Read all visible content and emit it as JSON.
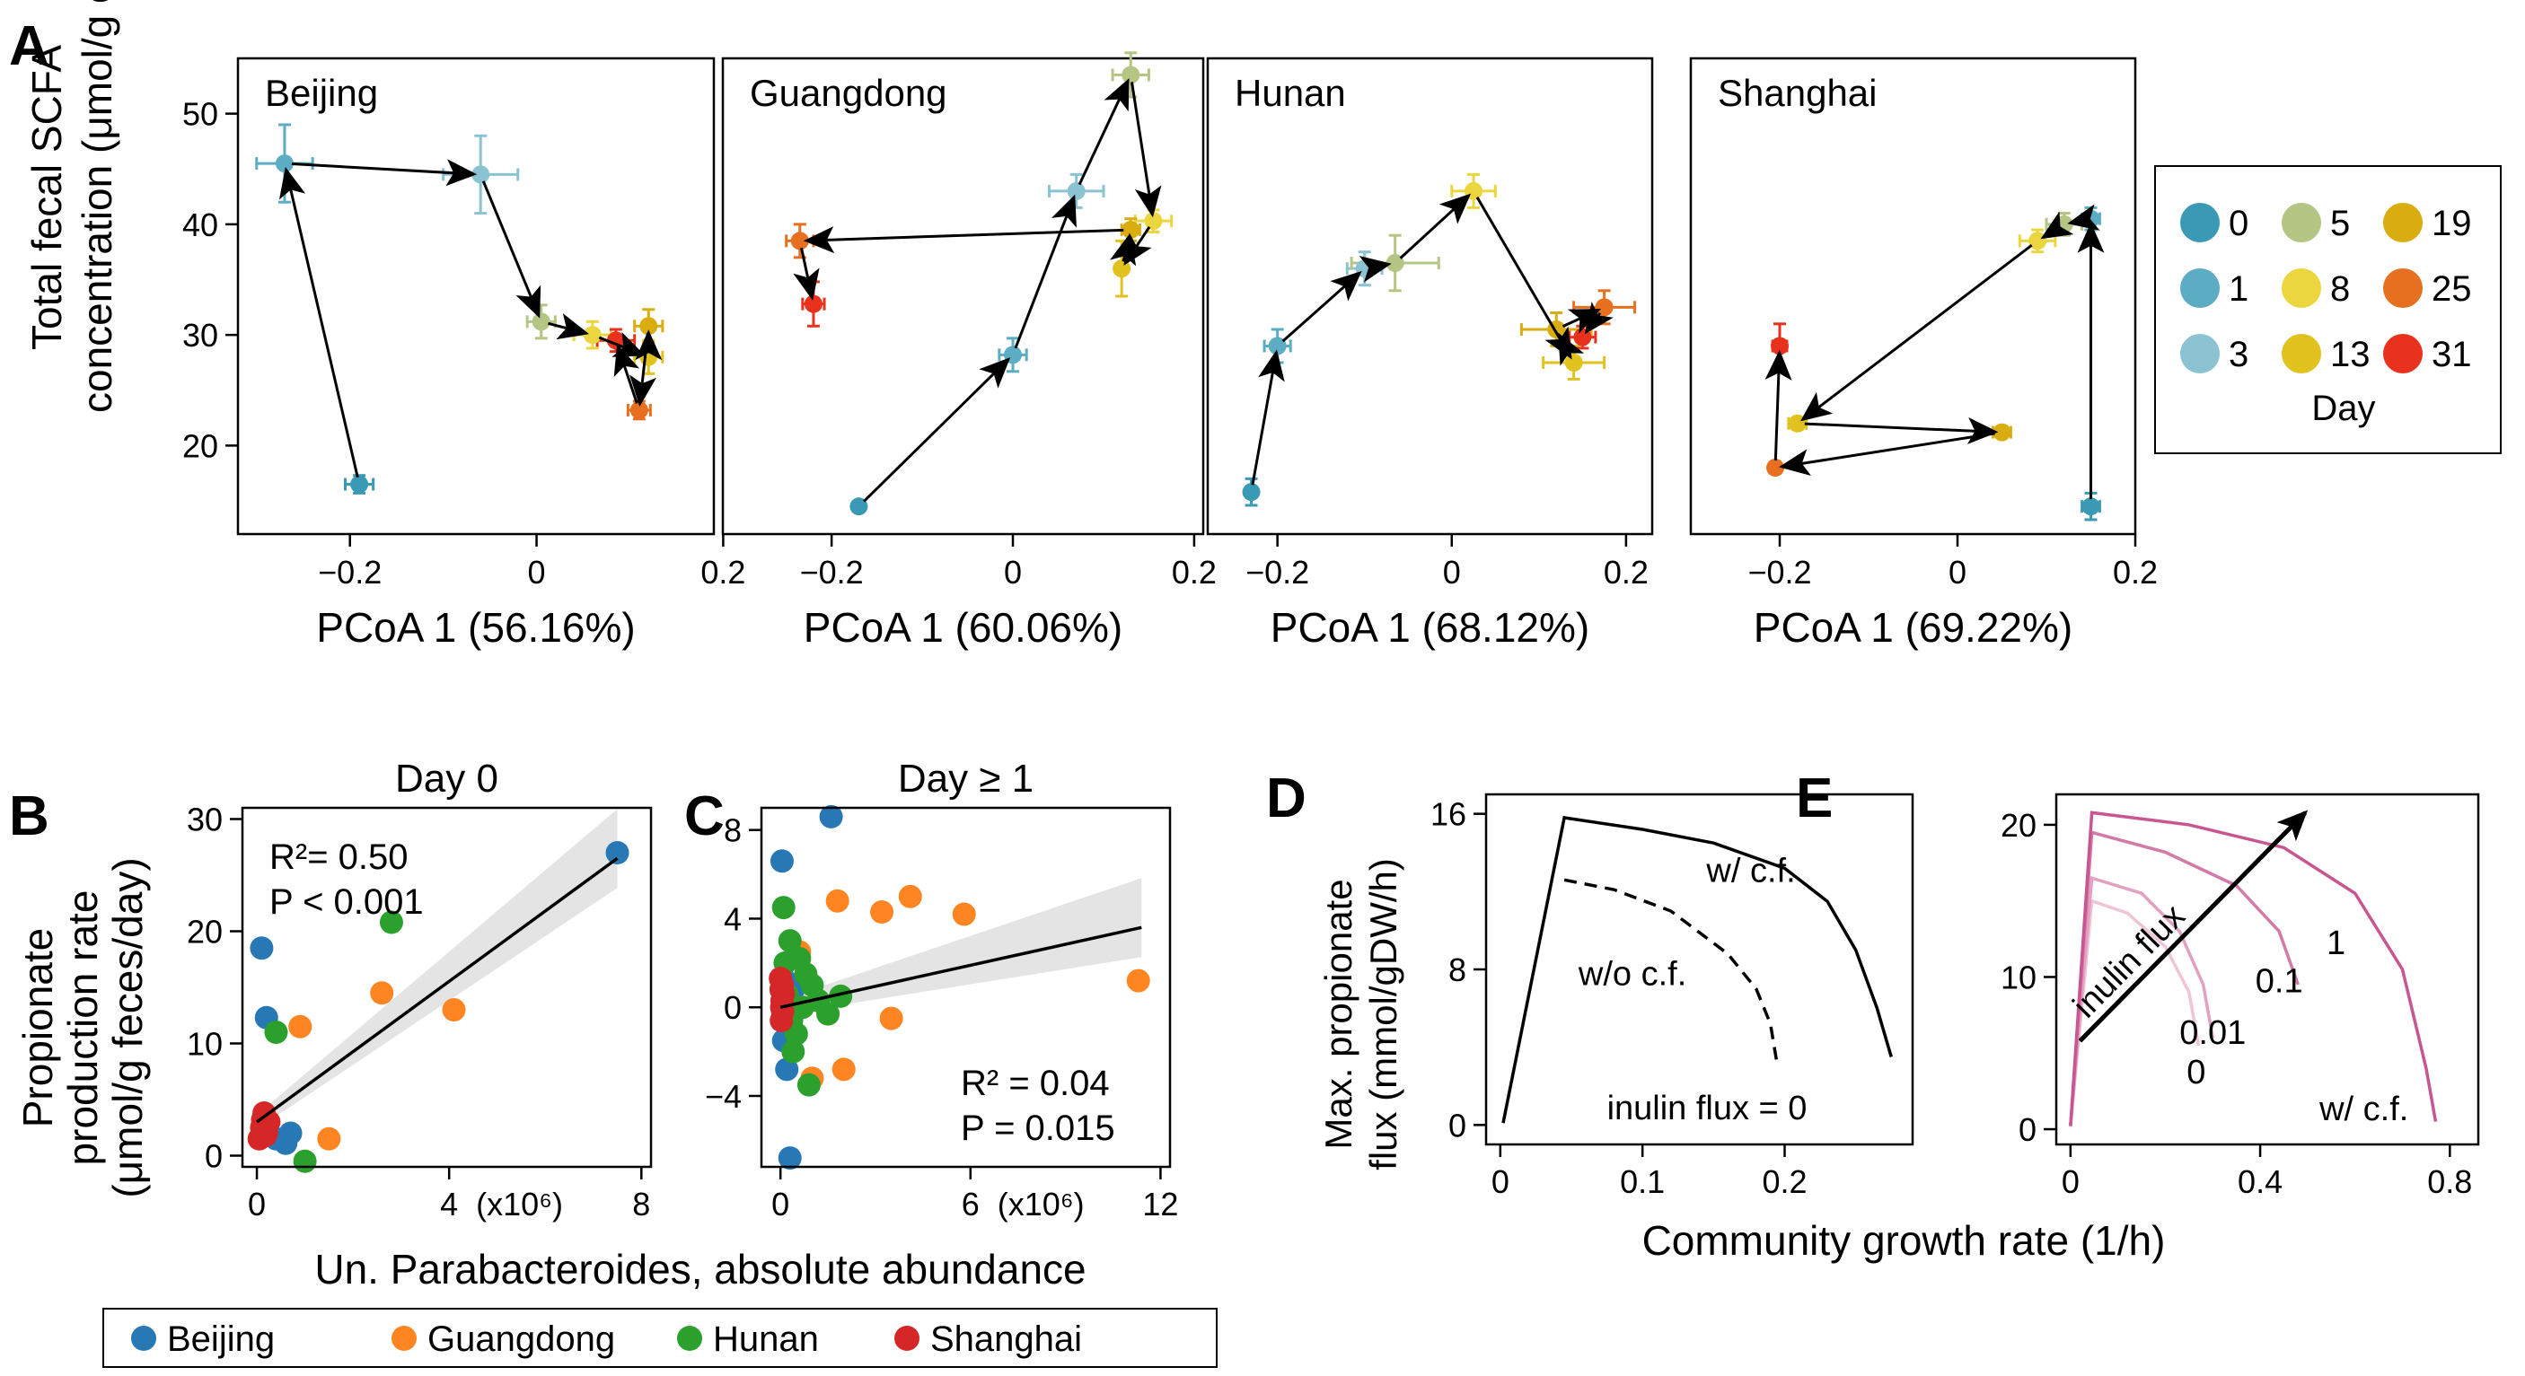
{
  "colors": {
    "day": {
      "0": "#3a9ab5",
      "1": "#5cacc4",
      "3": "#8bc3d2",
      "5": "#b5c583",
      "8": "#ecd63f",
      "13": "#e2c21f",
      "19": "#d9ad10",
      "25": "#e6701f",
      "31": "#e8321e"
    },
    "province": {
      "Beijing": "#2878b5",
      "Guangdong": "#ff8522",
      "Hunan": "#2ca02c",
      "Shanghai": "#d62728"
    },
    "inulin": {
      "0": "#f0c4d6",
      "0.01": "#e3a0c0",
      "0.1": "#d47aa7",
      "1": "#c75691"
    }
  },
  "panel_letters": [
    "A",
    "B",
    "C",
    "D",
    "E"
  ],
  "panelA": {
    "ylabel_line1": "Total fecal SCFA",
    "ylabel_line2": "concentration (μmol/g eces)",
    "yticks": [
      "20",
      "30",
      "40",
      "50"
    ],
    "xticks": [
      "−0.2",
      "0",
      "0.2"
    ],
    "legend": {
      "title": "Day",
      "items": [
        [
          "0",
          "0"
        ],
        [
          "5",
          "5"
        ],
        [
          "19",
          "19"
        ],
        [
          "1",
          "1"
        ],
        [
          "8",
          "8"
        ],
        [
          "25",
          "25"
        ],
        [
          "3",
          "3"
        ],
        [
          "13",
          "13"
        ],
        [
          "31",
          "31"
        ]
      ]
    }
  },
  "panelB": {
    "title": "Day 0",
    "r2": "R²= 0.50",
    "p": "P < 0.001",
    "ylabel_line1": "Propionate",
    "ylabel_line2": "production rate",
    "ylabel_line3": "(μmol/g feces/day)",
    "yticks": [
      "0",
      "10",
      "20",
      "30"
    ],
    "xticks": [
      "0",
      "4",
      "8"
    ],
    "xmult": "(x10⁶)"
  },
  "panelC": {
    "title": "Day ≥ 1",
    "r2": "R² = 0.04",
    "p": "P = 0.015",
    "yticks": [
      "−4",
      "0",
      "4",
      "8"
    ],
    "xticks": [
      "0",
      "6",
      "12"
    ],
    "xmult": "(x10⁶)"
  },
  "shared_xlabel_BC": "Un. Parabacteroides, absolute abundance",
  "legend_BC": [
    "Beijing",
    "Guangdong",
    "Hunan",
    "Shanghai"
  ],
  "panelD": {
    "ylabel_line1": "Max. propionate",
    "ylabel_line2": "flux (mmol/gDW/h)",
    "yticks": [
      "0",
      "8",
      "16"
    ],
    "xticks": [
      "0",
      "0.1",
      "0.2"
    ],
    "label_cf": "w/ c.f.",
    "label_nocf": "w/o c.f.",
    "label_inulin": "inulin flux = 0"
  },
  "panelE": {
    "yticks": [
      "0",
      "10",
      "20"
    ],
    "xticks": [
      "0",
      "0.4",
      "0.8"
    ],
    "arrow_label": "inulin flux",
    "label_cf": "w/ c.f.",
    "curve_labels": [
      "0",
      "0.01",
      "0.1",
      "1"
    ]
  },
  "shared_xlabel_DE": "Community growth rate (1/h)",
  "chart_data": [
    {
      "type": "scatter",
      "panel": "A",
      "title": "Beijing",
      "xlabel": "PCoA 1 (56.16%)",
      "ylabel": "Total fecal SCFA concentration (μmol/g eces)",
      "xlim": [
        -0.32,
        0.19
      ],
      "ylim": [
        12,
        55
      ],
      "points": [
        {
          "day": 0,
          "x": -0.19,
          "y": 16.5,
          "xerr": 0.015,
          "yerr": 0.8
        },
        {
          "day": 1,
          "x": -0.27,
          "y": 45.5,
          "xerr": 0.03,
          "yerr": 3.5
        },
        {
          "day": 3,
          "x": -0.06,
          "y": 44.5,
          "xerr": 0.04,
          "yerr": 3.5
        },
        {
          "day": 5,
          "x": 0.005,
          "y": 31.2,
          "xerr": 0.015,
          "yerr": 1.5
        },
        {
          "day": 8,
          "x": 0.06,
          "y": 30.0,
          "xerr": 0.02,
          "yerr": 1.2
        },
        {
          "day": 13,
          "x": 0.12,
          "y": 28.0,
          "xerr": 0.015,
          "yerr": 1.5
        },
        {
          "day": 19,
          "x": 0.12,
          "y": 30.8,
          "xerr": 0.015,
          "yerr": 1.5
        },
        {
          "day": 25,
          "x": 0.11,
          "y": 23.2,
          "xerr": 0.012,
          "yerr": 0.8
        },
        {
          "day": 31,
          "x": 0.085,
          "y": 29.5,
          "xerr": 0.02,
          "yerr": 1.0
        }
      ]
    },
    {
      "type": "scatter",
      "panel": "A",
      "title": "Guangdong",
      "xlabel": "PCoA 1 (60.06%)",
      "xlim": [
        -0.32,
        0.21
      ],
      "ylim": [
        12,
        55
      ],
      "points": [
        {
          "day": 0,
          "x": -0.17,
          "y": 14.5,
          "xerr": 0.005,
          "yerr": 0.4
        },
        {
          "day": 1,
          "x": 0.0,
          "y": 28.2,
          "xerr": 0.015,
          "yerr": 1.5
        },
        {
          "day": 3,
          "x": 0.07,
          "y": 43.0,
          "xerr": 0.03,
          "yerr": 1.5
        },
        {
          "day": 5,
          "x": 0.13,
          "y": 53.5,
          "xerr": 0.02,
          "yerr": 2.0
        },
        {
          "day": 8,
          "x": 0.155,
          "y": 40.3,
          "xerr": 0.02,
          "yerr": 1.0
        },
        {
          "day": 13,
          "x": 0.12,
          "y": 36.0,
          "xerr": 0.005,
          "yerr": 2.5
        },
        {
          "day": 19,
          "x": 0.13,
          "y": 39.5,
          "xerr": 0.01,
          "yerr": 1.0
        },
        {
          "day": 25,
          "x": -0.235,
          "y": 38.5,
          "xerr": 0.015,
          "yerr": 1.5
        },
        {
          "day": 31,
          "x": -0.22,
          "y": 32.8,
          "xerr": 0.012,
          "yerr": 2.0
        }
      ]
    },
    {
      "type": "scatter",
      "panel": "A",
      "title": "Hunan",
      "xlabel": "PCoA 1 (68.12%)",
      "xlim": [
        -0.28,
        0.23
      ],
      "ylim": [
        12,
        55
      ],
      "points": [
        {
          "day": 0,
          "x": -0.23,
          "y": 15.8,
          "xerr": 0.005,
          "yerr": 1.2
        },
        {
          "day": 1,
          "x": -0.2,
          "y": 29.0,
          "xerr": 0.015,
          "yerr": 1.5
        },
        {
          "day": 3,
          "x": -0.1,
          "y": 36.0,
          "xerr": 0.02,
          "yerr": 1.5
        },
        {
          "day": 5,
          "x": -0.065,
          "y": 36.5,
          "xerr": 0.05,
          "yerr": 2.5
        },
        {
          "day": 8,
          "x": 0.025,
          "y": 43.0,
          "xerr": 0.025,
          "yerr": 1.5
        },
        {
          "day": 13,
          "x": 0.14,
          "y": 27.5,
          "xerr": 0.035,
          "yerr": 1.5
        },
        {
          "day": 19,
          "x": 0.12,
          "y": 30.5,
          "xerr": 0.04,
          "yerr": 1.5
        },
        {
          "day": 25,
          "x": 0.175,
          "y": 32.5,
          "xerr": 0.035,
          "yerr": 1.5
        },
        {
          "day": 31,
          "x": 0.15,
          "y": 29.8,
          "xerr": 0.015,
          "yerr": 1.0
        }
      ]
    },
    {
      "type": "scatter",
      "panel": "A",
      "title": "Shanghai",
      "xlabel": "PCoA 1 (69.22%)",
      "xlim": [
        -0.3,
        0.2
      ],
      "ylim": [
        12,
        55
      ],
      "points": [
        {
          "day": 0,
          "x": 0.15,
          "y": 14.5,
          "xerr": 0.01,
          "yerr": 1.2
        },
        {
          "day": 1,
          "x": 0.15,
          "y": 40.5,
          "xerr": 0.01,
          "yerr": 1.0
        },
        {
          "day": 5,
          "x": 0.12,
          "y": 40.0,
          "xerr": 0.02,
          "yerr": 1.0
        },
        {
          "day": 8,
          "x": 0.09,
          "y": 38.5,
          "xerr": 0.02,
          "yerr": 1.0
        },
        {
          "day": 13,
          "x": -0.18,
          "y": 22.0,
          "xerr": 0.01,
          "yerr": 0.5
        },
        {
          "day": 19,
          "x": 0.05,
          "y": 21.2,
          "xerr": 0.01,
          "yerr": 0.5
        },
        {
          "day": 25,
          "x": -0.205,
          "y": 18.0,
          "xerr": 0.005,
          "yerr": 0.5
        },
        {
          "day": 31,
          "x": -0.2,
          "y": 29.0,
          "xerr": 0.008,
          "yerr": 2.0
        }
      ]
    },
    {
      "type": "scatter",
      "panel": "B",
      "title": "Day 0",
      "xlabel": "Un. Parabacteroides, absolute abundance",
      "ylabel": "Propionate production rate (μmol/g feces/day)",
      "xlim": [
        -0.3,
        8.2
      ],
      "ylim": [
        -1,
        31
      ],
      "fit": [
        [
          0,
          3.0
        ],
        [
          7.5,
          26.5
        ]
      ],
      "series": [
        {
          "name": "Beijing",
          "points": [
            [
              0.1,
              18.5
            ],
            [
              0.2,
              12.3
            ],
            [
              0.4,
              1.5
            ],
            [
              0.6,
              1.1
            ],
            [
              0.7,
              2.0
            ],
            [
              7.5,
              27.0
            ]
          ]
        },
        {
          "name": "Guangdong",
          "points": [
            [
              0.9,
              11.5
            ],
            [
              1.5,
              1.5
            ],
            [
              2.6,
              14.5
            ],
            [
              4.1,
              13.0
            ]
          ]
        },
        {
          "name": "Hunan",
          "points": [
            [
              0.4,
              11.0
            ],
            [
              1.0,
              -0.5
            ],
            [
              2.8,
              20.8
            ]
          ]
        },
        {
          "name": "Shanghai",
          "points": [
            [
              0.05,
              1.5
            ],
            [
              0.1,
              2.5
            ],
            [
              0.12,
              3.2
            ],
            [
              0.15,
              3.8
            ],
            [
              0.2,
              2.0
            ],
            [
              0.25,
              3.0
            ],
            [
              0.18,
              1.8
            ]
          ]
        }
      ]
    },
    {
      "type": "scatter",
      "panel": "C",
      "title": "Day ≥ 1",
      "xlabel": "Un. Parabacteroides, absolute abundance",
      "xlim": [
        -0.6,
        12.3
      ],
      "ylim": [
        -7.2,
        9
      ],
      "fit": [
        [
          0,
          0.0
        ],
        [
          11.4,
          3.6
        ]
      ],
      "series": [
        {
          "name": "Beijing",
          "points": [
            [
              0.05,
              6.6
            ],
            [
              1.6,
              8.6
            ],
            [
              0.1,
              -1.5
            ],
            [
              0.2,
              -2.8
            ],
            [
              0.3,
              -6.8
            ],
            [
              0.15,
              1.2
            ],
            [
              0.4,
              0.8
            ]
          ]
        },
        {
          "name": "Guangdong",
          "points": [
            [
              1.8,
              4.8
            ],
            [
              3.2,
              4.3
            ],
            [
              4.1,
              5.0
            ],
            [
              5.8,
              4.2
            ],
            [
              11.3,
              1.2
            ],
            [
              3.5,
              -0.5
            ],
            [
              2.0,
              -2.8
            ],
            [
              1.0,
              -3.2
            ],
            [
              0.6,
              2.5
            ]
          ]
        },
        {
          "name": "Hunan",
          "points": [
            [
              0.1,
              4.5
            ],
            [
              0.3,
              3.0
            ],
            [
              0.6,
              2.2
            ],
            [
              0.8,
              1.5
            ],
            [
              1.0,
              1.0
            ],
            [
              1.2,
              0.3
            ],
            [
              1.5,
              -0.3
            ],
            [
              0.5,
              -1.2
            ],
            [
              0.9,
              -3.5
            ],
            [
              0.4,
              -2.0
            ],
            [
              0.2,
              0.6
            ],
            [
              0.7,
              0.0
            ],
            [
              1.9,
              0.5
            ],
            [
              0.35,
              -0.6
            ],
            [
              0.15,
              2.0
            ]
          ]
        },
        {
          "name": "Shanghai",
          "points": [
            [
              0.0,
              1.3
            ],
            [
              0.02,
              0.8
            ],
            [
              0.05,
              0.3
            ],
            [
              0.07,
              -0.2
            ],
            [
              0.03,
              -0.6
            ],
            [
              0.09,
              0.6
            ],
            [
              0.06,
              1.0
            ],
            [
              0.04,
              0.0
            ]
          ]
        }
      ]
    },
    {
      "type": "line",
      "panel": "D",
      "xlabel": "Community growth rate (1/h)",
      "ylabel": "Max. propionate flux (mmol/gDW/h)",
      "xlim": [
        -0.01,
        0.29
      ],
      "ylim": [
        -1,
        17
      ],
      "series": [
        {
          "name": "w/ c.f.",
          "style": "solid",
          "points": [
            [
              0.002,
              0.1
            ],
            [
              0.045,
              15.8
            ],
            [
              0.1,
              15.2
            ],
            [
              0.15,
              14.5
            ],
            [
              0.2,
              13.2
            ],
            [
              0.23,
              11.5
            ],
            [
              0.25,
              9.0
            ],
            [
              0.265,
              6.0
            ],
            [
              0.275,
              3.5
            ]
          ]
        },
        {
          "name": "w/o c.f.",
          "style": "dashed",
          "points": [
            [
              0.045,
              12.6
            ],
            [
              0.08,
              12.1
            ],
            [
              0.12,
              11.0
            ],
            [
              0.16,
              8.8
            ],
            [
              0.18,
              7.0
            ],
            [
              0.19,
              5.2
            ],
            [
              0.195,
              3.0
            ]
          ]
        }
      ]
    },
    {
      "type": "line",
      "panel": "E",
      "xlabel": "Community growth rate (1/h)",
      "xlim": [
        -0.03,
        0.86
      ],
      "ylim": [
        -1,
        22
      ],
      "series": [
        {
          "name": "0",
          "points": [
            [
              0.0,
              0.2
            ],
            [
              0.045,
              15.0
            ],
            [
              0.12,
              14.2
            ],
            [
              0.2,
              12.0
            ],
            [
              0.25,
              9.0
            ],
            [
              0.27,
              5.5
            ]
          ]
        },
        {
          "name": "0.01",
          "points": [
            [
              0.0,
              0.2
            ],
            [
              0.045,
              16.5
            ],
            [
              0.15,
              15.5
            ],
            [
              0.23,
              13.0
            ],
            [
              0.28,
              9.5
            ],
            [
              0.3,
              6.0
            ]
          ]
        },
        {
          "name": "0.1",
          "points": [
            [
              0.0,
              0.2
            ],
            [
              0.045,
              19.5
            ],
            [
              0.2,
              18.2
            ],
            [
              0.35,
              16.0
            ],
            [
              0.44,
              13.0
            ],
            [
              0.48,
              9.5
            ]
          ]
        },
        {
          "name": "1",
          "points": [
            [
              0.0,
              0.2
            ],
            [
              0.045,
              20.8
            ],
            [
              0.25,
              20.0
            ],
            [
              0.45,
              18.5
            ],
            [
              0.6,
              15.5
            ],
            [
              0.7,
              10.5
            ],
            [
              0.75,
              4.0
            ],
            [
              0.77,
              0.5
            ]
          ]
        }
      ]
    }
  ]
}
